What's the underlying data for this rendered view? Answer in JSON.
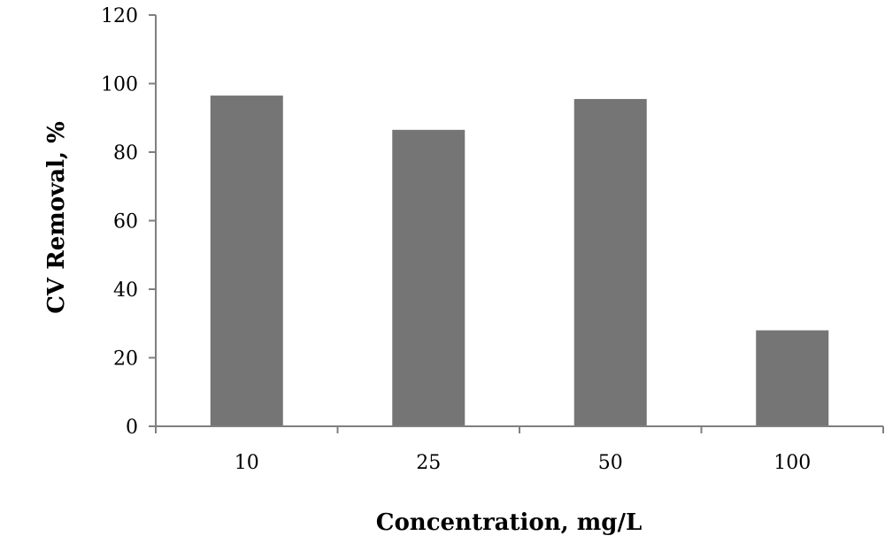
{
  "chart_data": {
    "type": "bar",
    "title": "",
    "xlabel": "Concentration, mg/L",
    "ylabel": "CV Removal, %",
    "categories": [
      "10",
      "25",
      "50",
      "100"
    ],
    "values": [
      96.5,
      86.5,
      95.5,
      28
    ],
    "ylim": [
      0,
      120
    ],
    "yticks": [
      0,
      20,
      40,
      60,
      80,
      100,
      120
    ],
    "bar_color": "#757575",
    "axis_color": "#7f7f7f",
    "grid": false,
    "legend": "none"
  }
}
